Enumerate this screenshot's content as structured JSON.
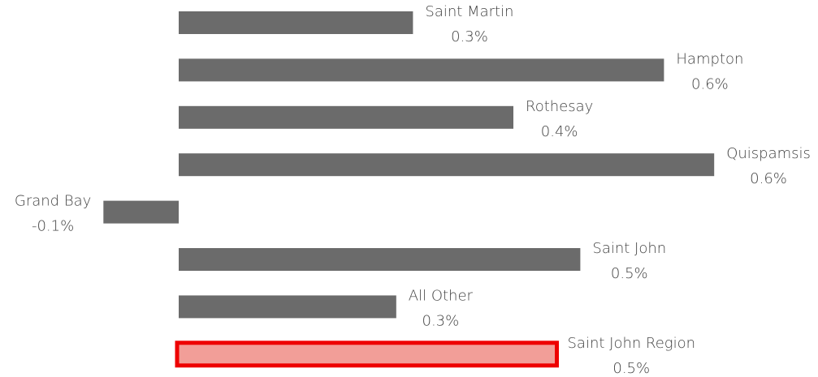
{
  "chart_data": {
    "type": "barh",
    "categories": [
      "Saint Martin",
      "Hampton",
      "Rothesay",
      "Quispamsis",
      "Grand Bay",
      "Saint John",
      "All Other",
      "Saint John Region"
    ],
    "values": [
      0.28,
      0.58,
      0.4,
      0.64,
      -0.09,
      0.48,
      0.26,
      0.45
    ],
    "value_labels": [
      "0.3%",
      "0.6%",
      "0.4%",
      "0.6%",
      "-0.1%",
      "0.5%",
      "0.3%",
      "0.5%"
    ],
    "colors": [
      "#6b6b6b",
      "#6b6b6b",
      "#6b6b6b",
      "#6b6b6b",
      "#6b6b6b",
      "#6b6b6b",
      "#6b6b6b",
      "#f29e98"
    ],
    "edgecolors": [
      null,
      null,
      null,
      null,
      null,
      null,
      null,
      "#ee0000"
    ],
    "grid": false
  }
}
